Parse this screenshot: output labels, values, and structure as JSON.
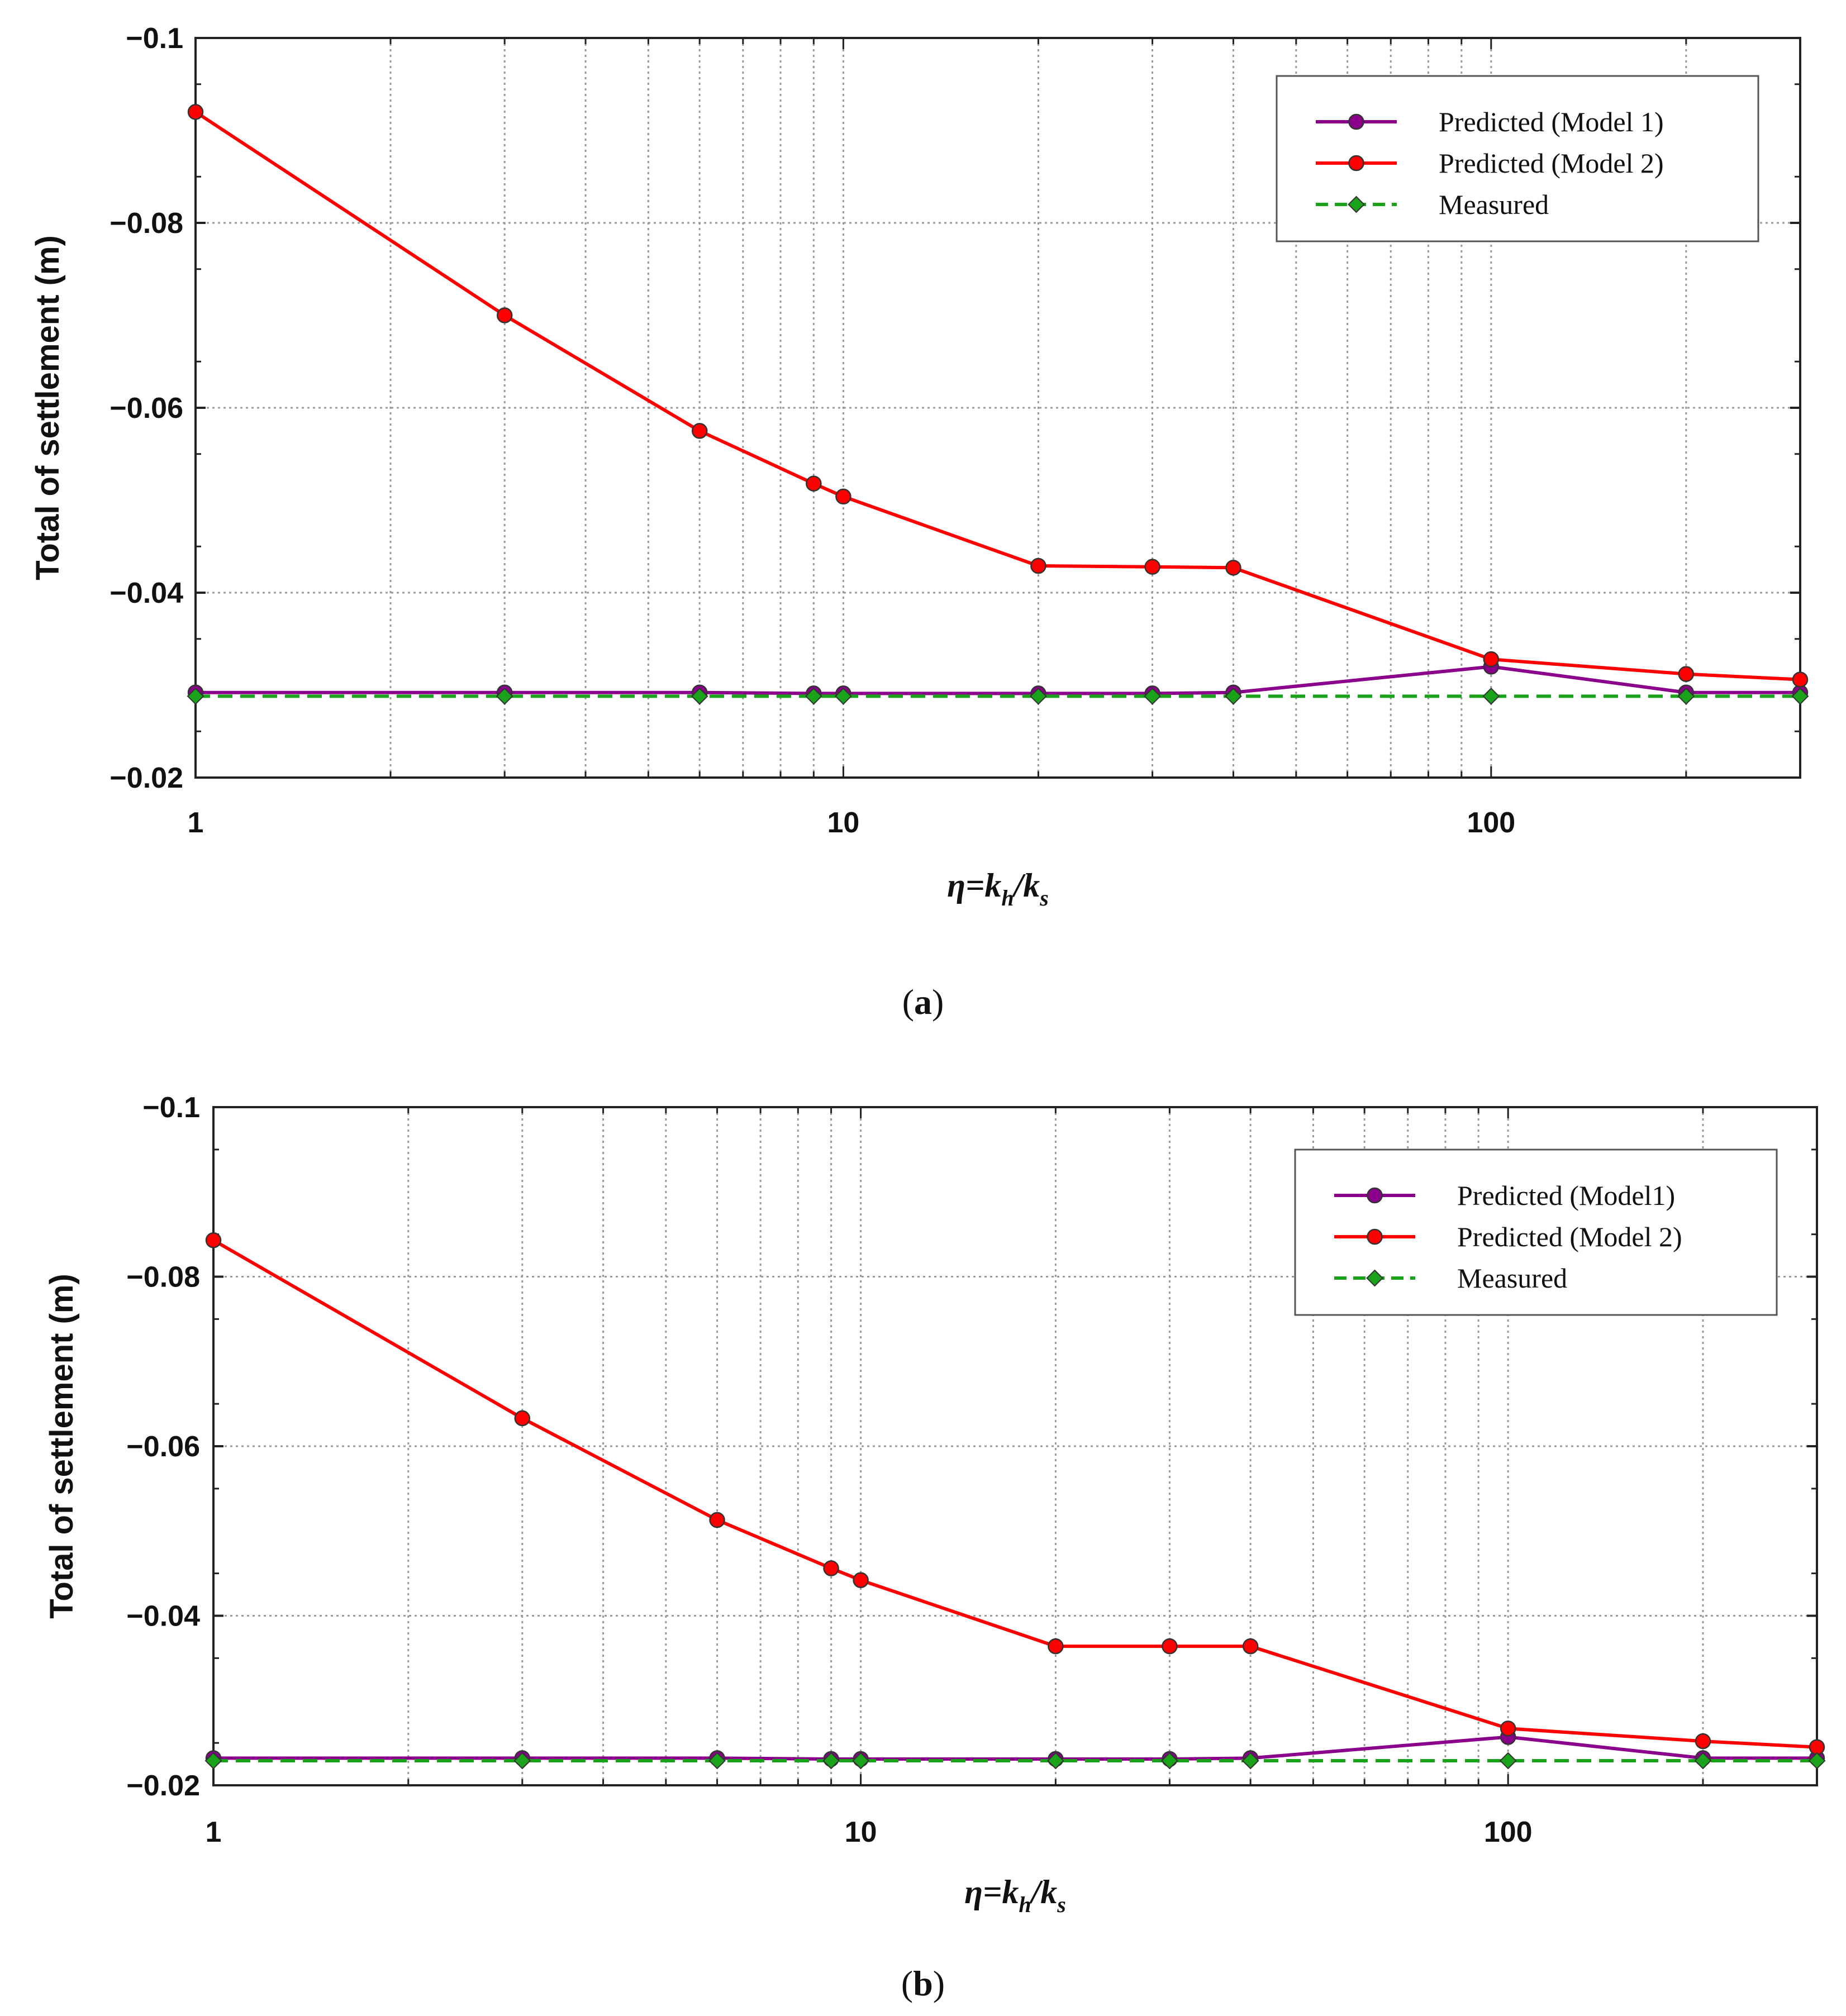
{
  "chart_data": [
    {
      "type": "line",
      "panel": "a",
      "caption": {
        "open": "(",
        "letter": "a",
        "close": ")"
      },
      "ylabel": "Total of settlement (m)",
      "xlabel": {
        "eta": "η",
        "eq": "=",
        "kh_k": "k",
        "kh_sub": "h",
        "slash": "/",
        "ks_k": "k",
        "ks_sub": "s"
      },
      "xscale": "log",
      "xlim": [
        1,
        300
      ],
      "ylim": [
        -0.02,
        -0.1
      ],
      "grid": true,
      "legend_position": "top-right",
      "x_ticks": [
        1,
        10,
        100
      ],
      "x_tick_labels": [
        "1",
        "10",
        "100"
      ],
      "y_ticks": [
        -0.1,
        -0.08,
        -0.06,
        -0.04,
        -0.02
      ],
      "y_tick_labels": [
        "−0.1",
        "−0.08",
        "−0.06",
        "−0.04",
        "−0.02"
      ],
      "x": [
        1,
        3,
        6,
        9,
        10,
        20,
        30,
        40,
        100,
        200,
        300
      ],
      "series": [
        {
          "name": "Predicted (Model 1)",
          "color": "#8b008b",
          "marker": "circle",
          "dash": "solid",
          "values": [
            -0.0292,
            -0.0292,
            -0.0292,
            -0.0291,
            -0.0291,
            -0.0291,
            -0.0291,
            -0.0292,
            -0.032,
            -0.0292,
            -0.0292
          ]
        },
        {
          "name": "Predicted (Model 2)",
          "color": "#ff0000",
          "marker": "circle",
          "dash": "solid",
          "values": [
            -0.092,
            -0.07,
            -0.0575,
            -0.0518,
            -0.0504,
            -0.0429,
            -0.0428,
            -0.0427,
            -0.0328,
            -0.0312,
            -0.0306
          ]
        },
        {
          "name": "Measured",
          "color": "#1aa31a",
          "marker": "diamond",
          "dash": "dashed",
          "values": [
            -0.0288,
            -0.0288,
            -0.0288,
            -0.0288,
            -0.0288,
            -0.0288,
            -0.0288,
            -0.0288,
            -0.0288,
            -0.0288,
            -0.0288
          ]
        }
      ]
    },
    {
      "type": "line",
      "panel": "b",
      "caption": {
        "open": "(",
        "letter": "b",
        "close": ")"
      },
      "ylabel": "Total of settlement (m)",
      "xlabel": {
        "eta": "η",
        "eq": "=",
        "kh_k": "k",
        "kh_sub": "h",
        "slash": "/",
        "ks_k": "k",
        "ks_sub": "s"
      },
      "xscale": "log",
      "xlim": [
        1,
        300
      ],
      "ylim": [
        -0.02,
        -0.1
      ],
      "grid": true,
      "legend_position": "top-right",
      "x_ticks": [
        1,
        10,
        100
      ],
      "x_tick_labels": [
        "1",
        "10",
        "100"
      ],
      "y_ticks": [
        -0.1,
        -0.08,
        -0.06,
        -0.04,
        -0.02
      ],
      "y_tick_labels": [
        "−0.1",
        "−0.08",
        "−0.06",
        "−0.04",
        "−0.02"
      ],
      "x": [
        1,
        3,
        6,
        9,
        10,
        20,
        30,
        40,
        100,
        200,
        300
      ],
      "series": [
        {
          "name": "Predicted (Model1)",
          "color": "#8b008b",
          "marker": "circle",
          "dash": "solid",
          "values": [
            -0.0232,
            -0.0232,
            -0.0232,
            -0.0231,
            -0.0231,
            -0.0231,
            -0.0231,
            -0.0232,
            -0.0257,
            -0.0232,
            -0.0232
          ]
        },
        {
          "name": "Predicted (Model 2)",
          "color": "#ff0000",
          "marker": "circle",
          "dash": "solid",
          "values": [
            -0.0843,
            -0.0633,
            -0.0513,
            -0.0456,
            -0.0442,
            -0.0364,
            -0.0364,
            -0.0364,
            -0.0267,
            -0.0252,
            -0.0245
          ]
        },
        {
          "name": "Measured",
          "color": "#1aa31a",
          "marker": "diamond",
          "dash": "dashed",
          "values": [
            -0.0229,
            -0.0229,
            -0.0229,
            -0.0229,
            -0.0229,
            -0.0229,
            -0.0229,
            -0.0229,
            -0.0229,
            -0.0229,
            -0.0229
          ]
        }
      ]
    }
  ]
}
